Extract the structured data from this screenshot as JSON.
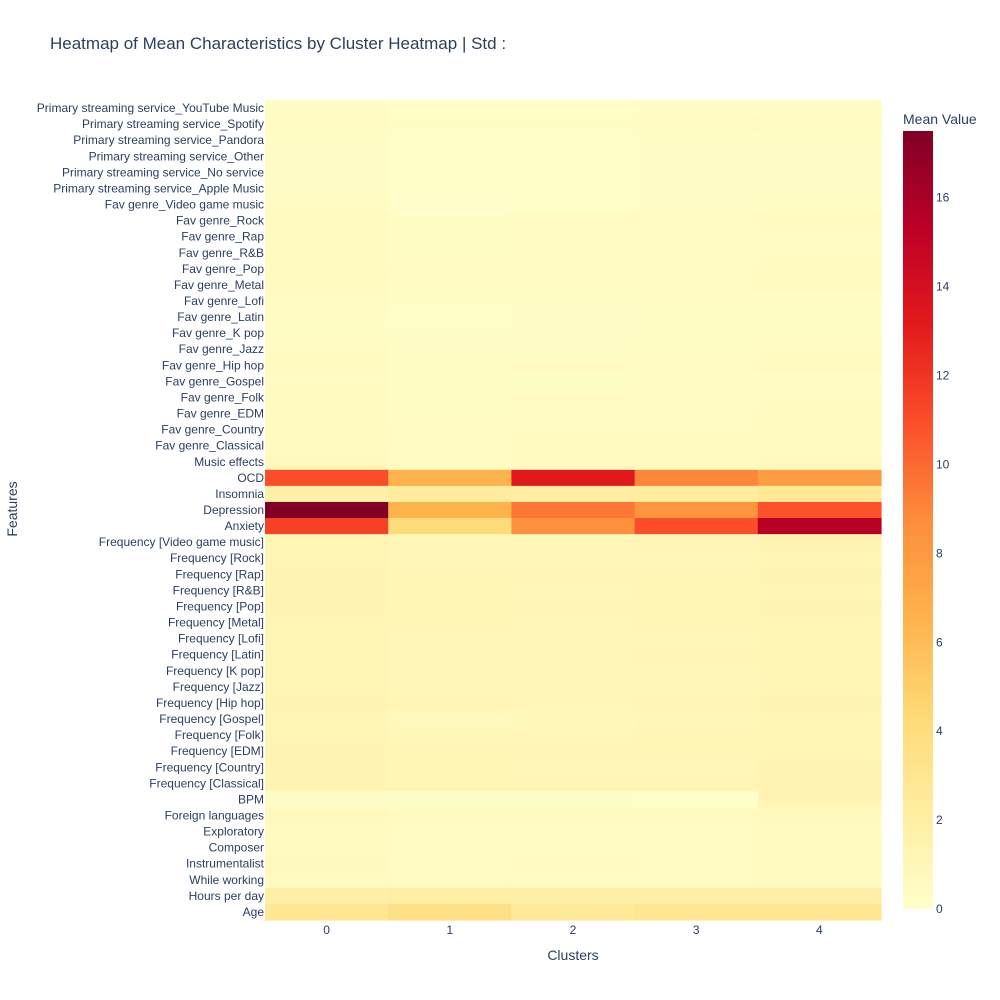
{
  "chart_data": {
    "type": "heatmap",
    "title": "Heatmap of Mean Characteristics by Cluster Heatmap | Std :",
    "xlabel": "Clusters",
    "ylabel": "Features",
    "colorbar_title": "Mean Value",
    "colorscale": [
      "#ffffcc",
      "#ffeda0",
      "#fed976",
      "#feb24c",
      "#fd8d3c",
      "#fc4e2a",
      "#e31a1c",
      "#bd0026",
      "#800026"
    ],
    "zmin": 0,
    "zmax": 17.5,
    "colorbar_ticks": [
      0,
      2,
      4,
      6,
      8,
      10,
      12,
      14,
      16
    ],
    "x": [
      "0",
      "1",
      "2",
      "3",
      "4"
    ],
    "y": [
      "Primary streaming service_YouTube Music",
      "Primary streaming service_Spotify",
      "Primary streaming service_Pandora",
      "Primary streaming service_Other",
      "Primary streaming service_No service",
      "Primary streaming service_Apple Music",
      "Fav genre_Video game music",
      "Fav genre_Rock",
      "Fav genre_Rap",
      "Fav genre_R&B",
      "Fav genre_Pop",
      "Fav genre_Metal",
      "Fav genre_Lofi",
      "Fav genre_Latin",
      "Fav genre_K pop",
      "Fav genre_Jazz",
      "Fav genre_Hip hop",
      "Fav genre_Gospel",
      "Fav genre_Folk",
      "Fav genre_EDM",
      "Fav genre_Country",
      "Fav genre_Classical",
      "Music effects",
      "OCD",
      "Insomnia",
      "Depression",
      "Anxiety",
      "Frequency [Video game music]",
      "Frequency [Rock]",
      "Frequency [Rap]",
      "Frequency [R&B]",
      "Frequency [Pop]",
      "Frequency [Metal]",
      "Frequency [Lofi]",
      "Frequency [Latin]",
      "Frequency [K pop]",
      "Frequency [Jazz]",
      "Frequency [Hip hop]",
      "Frequency [Gospel]",
      "Frequency [Folk]",
      "Frequency [EDM]",
      "Frequency [Country]",
      "Frequency [Classical]",
      "BPM",
      "Foreign languages",
      "Exploratory",
      "Composer",
      "Instrumentalist",
      "While working",
      "Hours per day",
      "Age"
    ],
    "z": [
      [
        0.3,
        0.2,
        0.2,
        0.3,
        0.3
      ],
      [
        0.5,
        0.4,
        0.4,
        0.5,
        0.5
      ],
      [
        0.3,
        0.2,
        0.2,
        0.3,
        0.3
      ],
      [
        0.3,
        0.2,
        0.2,
        0.3,
        0.3
      ],
      [
        0.3,
        0.2,
        0.2,
        0.3,
        0.3
      ],
      [
        0.3,
        0.2,
        0.2,
        0.3,
        0.3
      ],
      [
        0.5,
        0.1,
        0.2,
        0.3,
        0.4
      ],
      [
        0.6,
        0.4,
        0.5,
        0.5,
        0.6
      ],
      [
        0.6,
        0.4,
        0.5,
        0.5,
        0.5
      ],
      [
        0.6,
        0.4,
        0.5,
        0.5,
        0.5
      ],
      [
        0.6,
        0.5,
        0.5,
        0.5,
        0.6
      ],
      [
        0.6,
        0.4,
        0.5,
        0.5,
        0.6
      ],
      [
        0.5,
        0.3,
        0.3,
        0.4,
        0.4
      ],
      [
        0.4,
        0.2,
        0.3,
        0.3,
        0.4
      ],
      [
        0.4,
        0.3,
        0.3,
        0.4,
        0.4
      ],
      [
        0.5,
        0.3,
        0.3,
        0.4,
        0.5
      ],
      [
        0.6,
        0.4,
        0.5,
        0.5,
        0.6
      ],
      [
        0.5,
        0.3,
        0.3,
        0.4,
        0.4
      ],
      [
        0.6,
        0.4,
        0.5,
        0.5,
        0.5
      ],
      [
        0.6,
        0.4,
        0.5,
        0.5,
        0.6
      ],
      [
        0.6,
        0.5,
        0.5,
        0.5,
        0.6
      ],
      [
        0.6,
        0.5,
        0.6,
        0.6,
        0.6
      ],
      [
        0.7,
        0.5,
        0.6,
        0.6,
        0.7
      ],
      [
        11.0,
        6.5,
        13.2,
        9.0,
        7.8
      ],
      [
        1.8,
        2.3,
        2.1,
        2.2,
        2.7
      ],
      [
        17.5,
        6.5,
        9.5,
        8.3,
        10.8
      ],
      [
        11.5,
        4.0,
        8.5,
        11.0,
        15.5
      ],
      [
        1.2,
        1.0,
        1.0,
        1.1,
        1.3
      ],
      [
        1.2,
        1.0,
        1.0,
        1.0,
        1.2
      ],
      [
        1.3,
        1.1,
        1.1,
        1.1,
        1.3
      ],
      [
        1.3,
        1.1,
        1.0,
        1.1,
        1.2
      ],
      [
        1.3,
        1.1,
        1.1,
        1.1,
        1.3
      ],
      [
        1.2,
        1.2,
        1.0,
        1.1,
        1.2
      ],
      [
        1.2,
        1.0,
        1.0,
        1.0,
        1.2
      ],
      [
        1.2,
        1.0,
        1.0,
        1.1,
        1.2
      ],
      [
        1.2,
        1.0,
        1.0,
        1.0,
        1.2
      ],
      [
        1.2,
        1.0,
        1.0,
        1.0,
        1.2
      ],
      [
        1.3,
        1.1,
        1.0,
        1.1,
        1.3
      ],
      [
        1.2,
        0.8,
        0.9,
        1.0,
        1.2
      ],
      [
        1.2,
        1.0,
        1.0,
        1.1,
        1.2
      ],
      [
        1.3,
        1.2,
        1.1,
        1.1,
        1.2
      ],
      [
        1.3,
        1.1,
        1.0,
        1.0,
        1.3
      ],
      [
        1.3,
        1.1,
        1.1,
        1.1,
        1.3
      ],
      [
        0.3,
        0.3,
        0.3,
        0.2,
        1.3
      ],
      [
        0.7,
        0.6,
        0.6,
        0.6,
        0.7
      ],
      [
        0.6,
        0.5,
        0.5,
        0.5,
        0.6
      ],
      [
        0.6,
        0.5,
        0.5,
        0.5,
        0.6
      ],
      [
        0.7,
        0.5,
        0.6,
        0.5,
        0.6
      ],
      [
        0.6,
        0.5,
        0.5,
        0.5,
        0.6
      ],
      [
        1.8,
        2.0,
        1.8,
        1.9,
        1.9
      ],
      [
        2.8,
        3.5,
        2.5,
        3.0,
        3.0
      ]
    ]
  }
}
